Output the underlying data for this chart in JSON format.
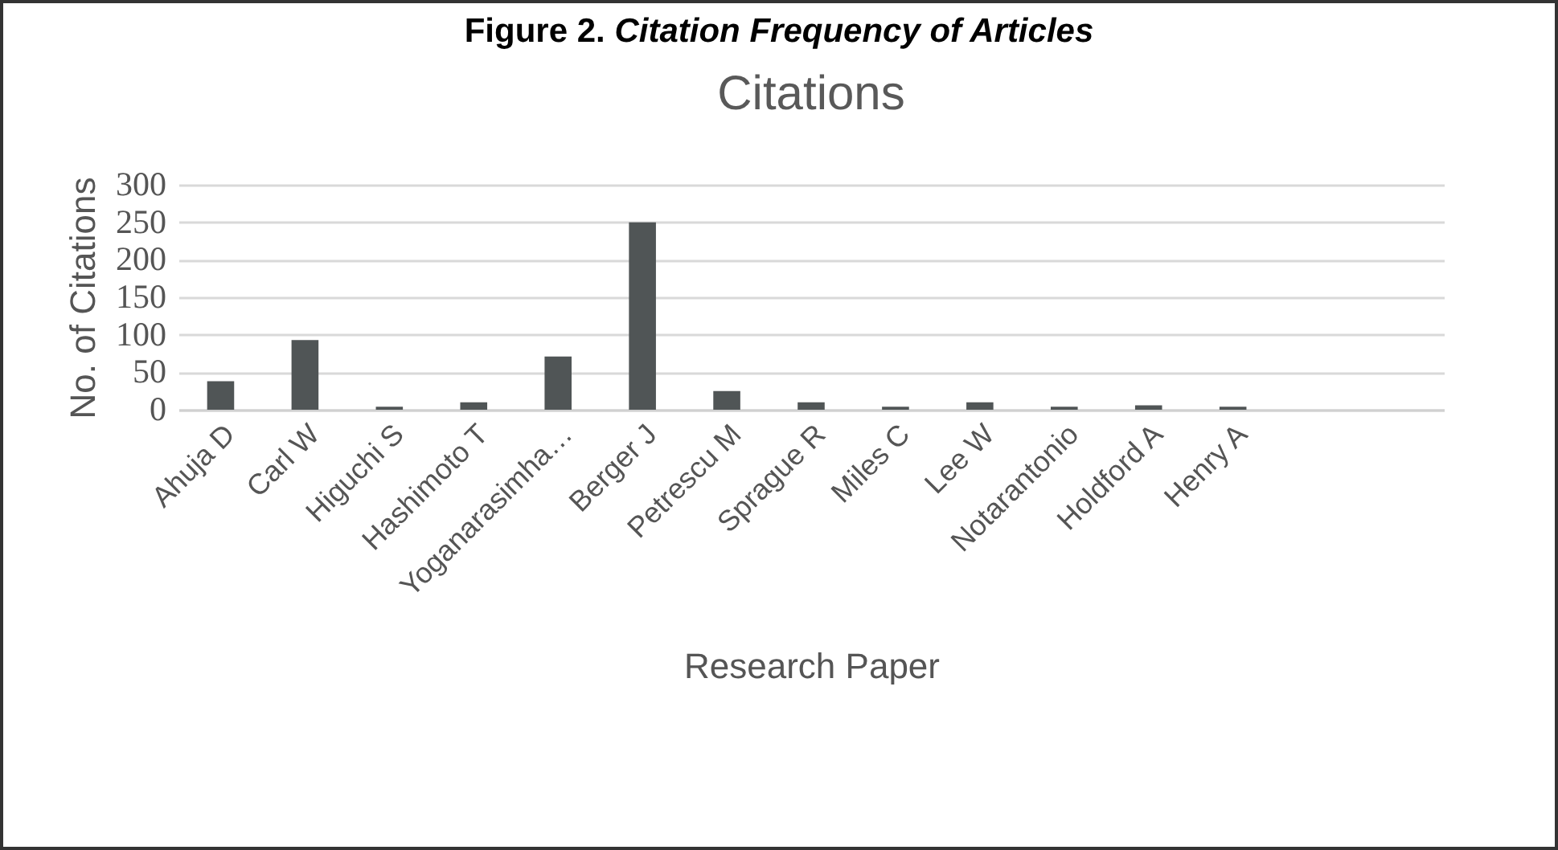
{
  "chart_data": {
    "type": "bar",
    "title": "Citations",
    "annotations": [
      "Figure 2. Citation Frequency of Articles"
    ],
    "xlabel": "Research Paper",
    "ylabel": "No. of Citations",
    "categories": [
      "Ahuja D",
      "Carl W",
      "Higuchi S",
      "Hashimoto T",
      "Yoganarasimha…",
      "Berger J",
      "Petrescu M",
      "Sprague R",
      "Miles C",
      "Lee W",
      "Notarantonio",
      "Holdford A",
      "Henry A",
      null,
      null
    ],
    "values": [
      38,
      93,
      4,
      10,
      71,
      250,
      25,
      10,
      4,
      10,
      4,
      6,
      4,
      null,
      null
    ],
    "color": "#505556",
    "ylim": [
      0,
      300
    ],
    "yticks": [
      0,
      50,
      100,
      150,
      200,
      250,
      300
    ],
    "grid": "y"
  }
}
